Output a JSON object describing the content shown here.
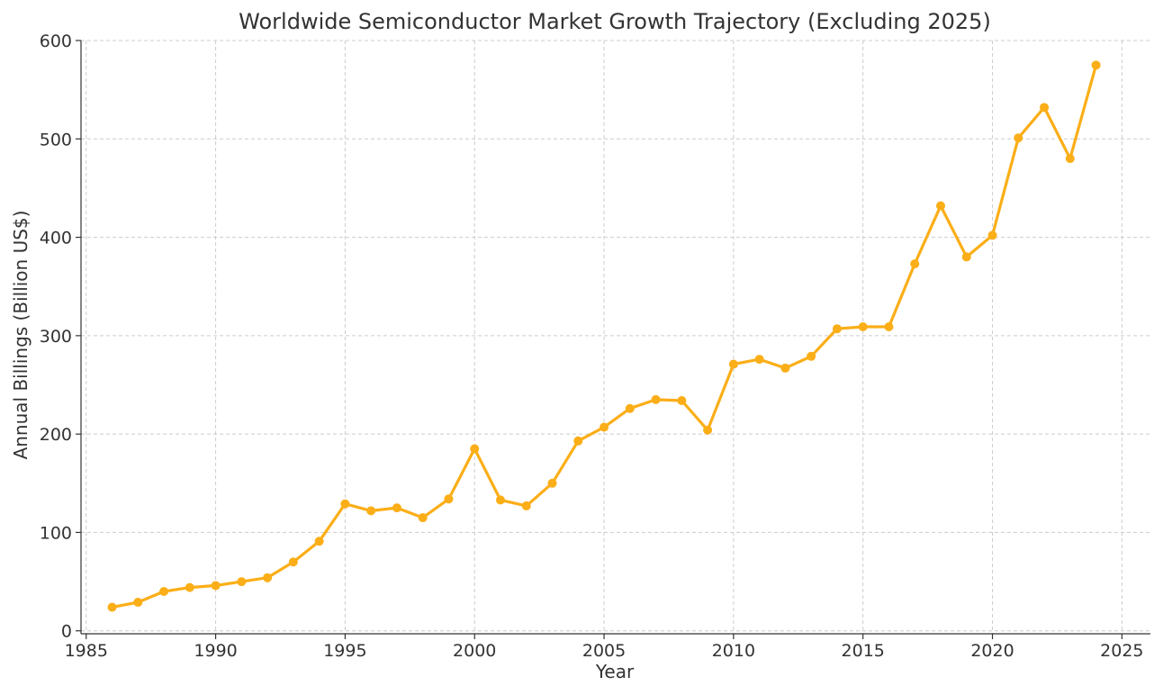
{
  "chart_data": {
    "type": "line",
    "title": "Worldwide Semiconductor Market Growth Trajectory (Excluding 2025)",
    "xlabel": "Year",
    "ylabel": "Annual Billings (Billion US$)",
    "xlim": [
      1984.8,
      2026.1
    ],
    "ylim": [
      -3,
      600
    ],
    "xticks": [
      1985,
      1990,
      1995,
      2000,
      2005,
      2010,
      2015,
      2020,
      2025
    ],
    "yticks": [
      0,
      100,
      200,
      300,
      400,
      500,
      600
    ],
    "grid": true,
    "line_color": "#FBAE17",
    "series": [
      {
        "name": "Annual Billings",
        "x": [
          1986,
          1987,
          1988,
          1989,
          1990,
          1991,
          1992,
          1993,
          1994,
          1995,
          1996,
          1997,
          1998,
          1999,
          2000,
          2001,
          2002,
          2003,
          2004,
          2005,
          2006,
          2007,
          2008,
          2009,
          2010,
          2011,
          2012,
          2013,
          2014,
          2015,
          2016,
          2017,
          2018,
          2019,
          2020,
          2021,
          2022,
          2023,
          2024
        ],
        "y": [
          24,
          29,
          40,
          44,
          46,
          50,
          54,
          70,
          91,
          129,
          122,
          125,
          115,
          134,
          185,
          133,
          127,
          150,
          193,
          207,
          226,
          235,
          234,
          204,
          271,
          276,
          267,
          279,
          307,
          309,
          309,
          373,
          432,
          380,
          402,
          501,
          532,
          480,
          575
        ]
      }
    ]
  }
}
